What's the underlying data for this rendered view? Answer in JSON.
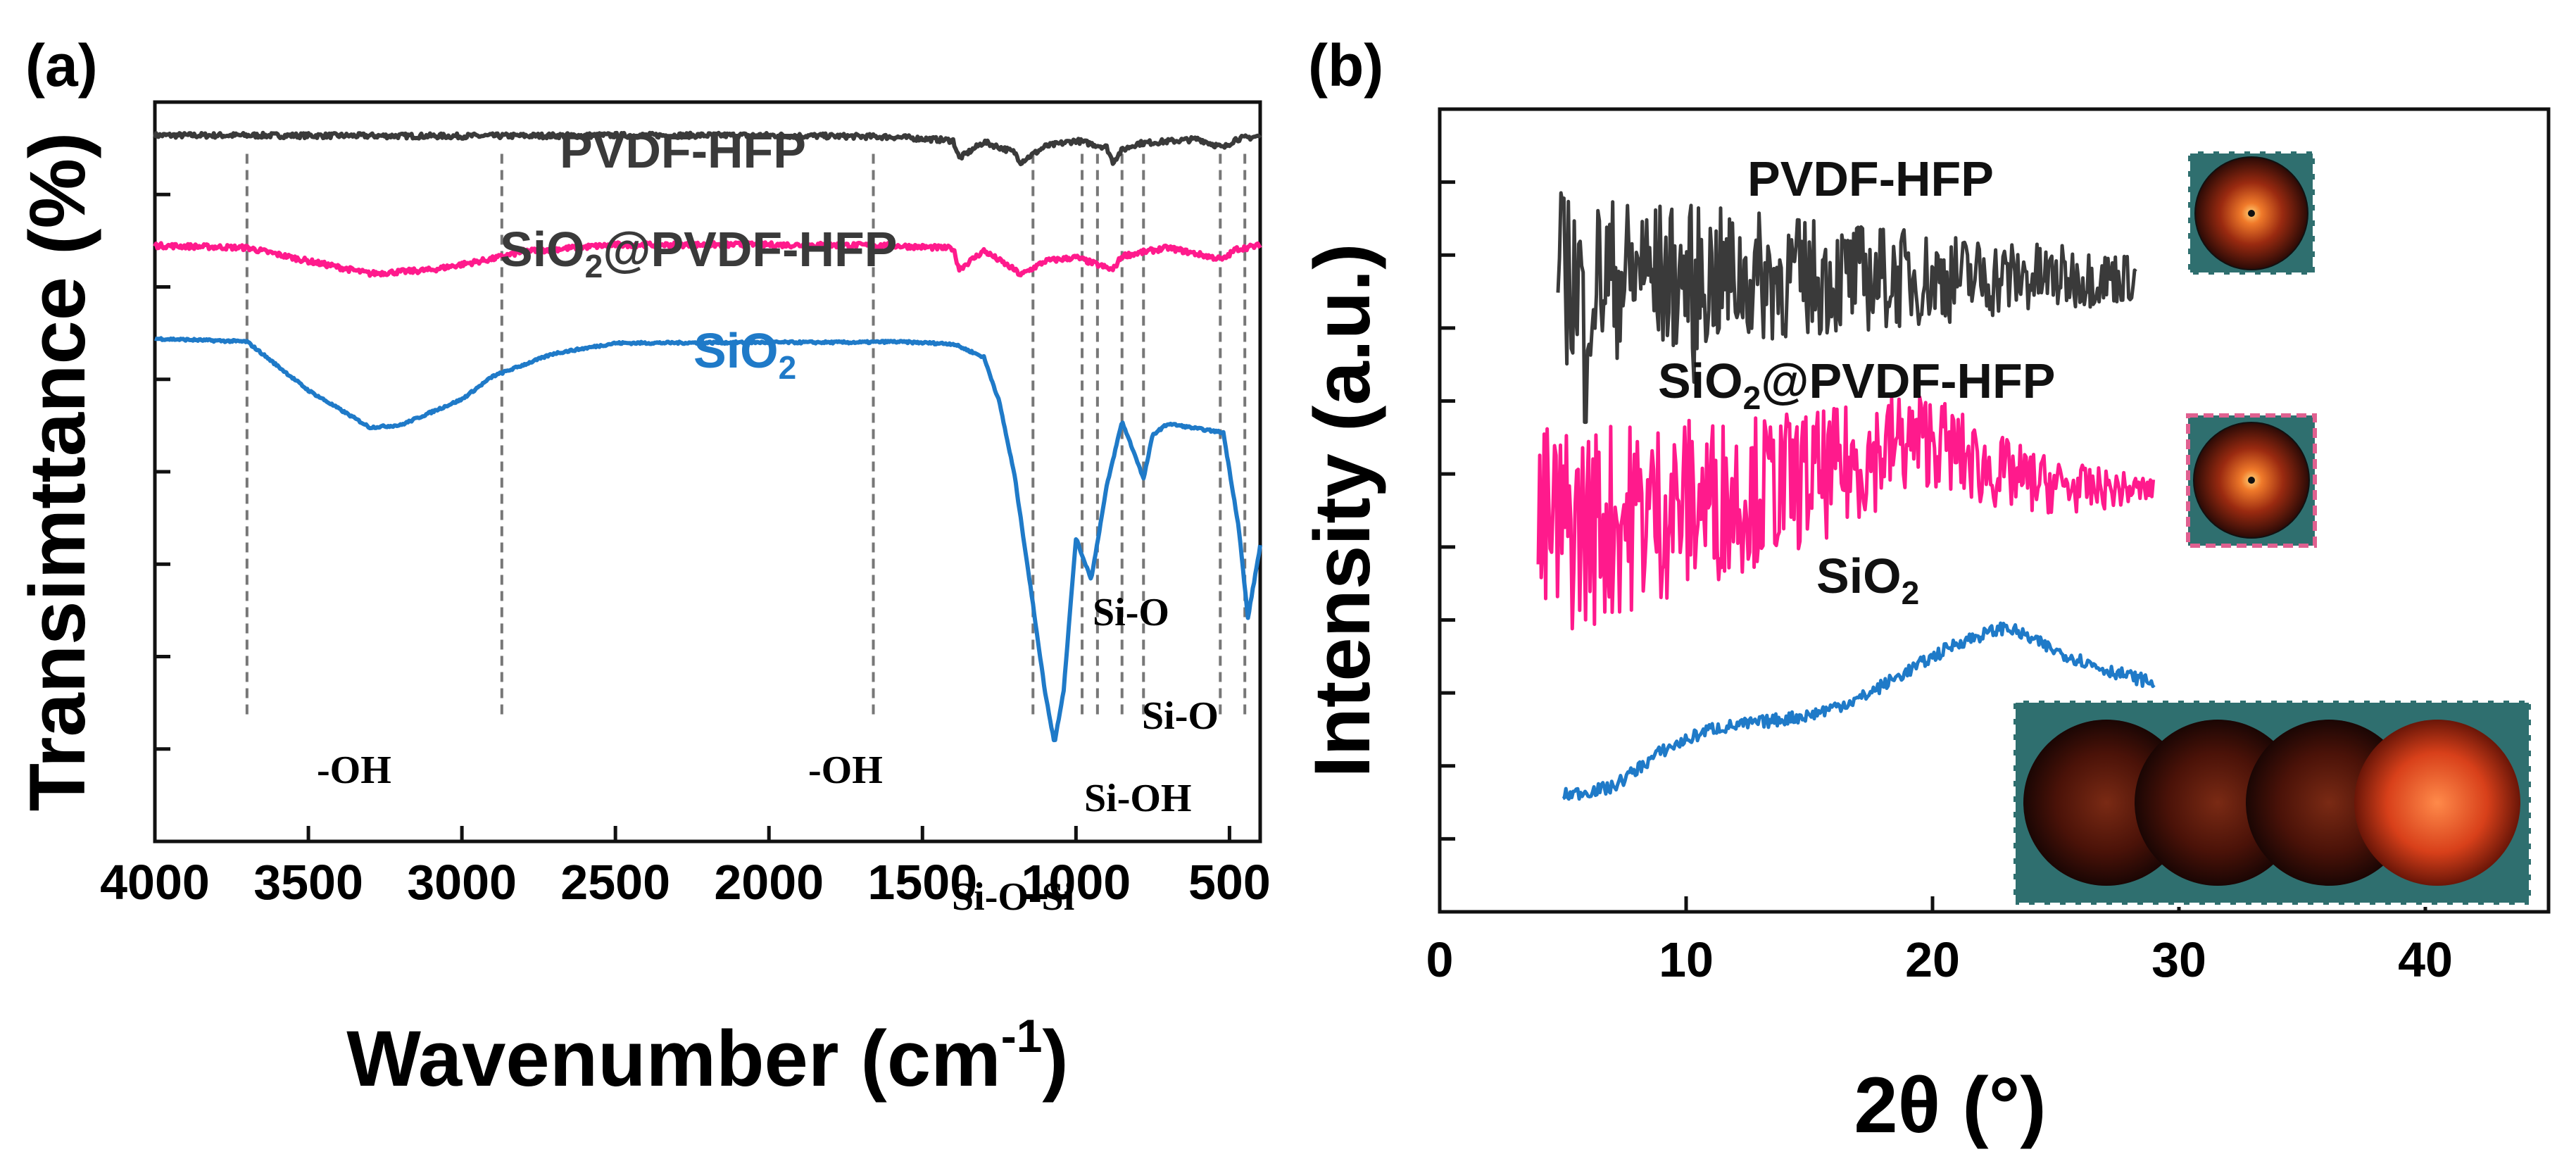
{
  "chart_data": [
    {
      "type": "line",
      "panel_label": "(a)",
      "title": "",
      "xlabel": "Wavenumber (cm",
      "xlabel_sup": "-1",
      "xlabel_end": ")",
      "ylabel": "Transimttance (%)",
      "xlim": [
        4000,
        400
      ],
      "ylim": [
        0,
        100
      ],
      "x_ticks": [
        4000,
        3500,
        3000,
        2500,
        2000,
        1500,
        1000,
        500
      ],
      "y_ticks_show_labels": false,
      "grid": false,
      "colors": {
        "PVDF-HFP": "#3a3a3a",
        "SiO2@PVDF-HFP": "#ff1a8c",
        "SiO2": "#1f7ac8",
        "guide": "#777777"
      },
      "series_labels": {
        "pvdf": "PVDF-HFP",
        "sio2pvdf_a": "SiO",
        "sio2pvdf_sub": "2",
        "sio2pvdf_b": "@PVDF-HFP",
        "sio2_a": "SiO",
        "sio2_sub": "2"
      },
      "series": [
        {
          "name": "PVDF-HFP",
          "x": [
            4000,
            3700,
            3000,
            2500,
            2000,
            1600,
            1400,
            1380,
            1300,
            1200,
            1180,
            1100,
            1000,
            900,
            880,
            850,
            800,
            600,
            520,
            480,
            400
          ],
          "values": [
            95.5,
            95.5,
            95.4,
            95.5,
            95.5,
            95.3,
            94.8,
            92.4,
            94.6,
            93.2,
            91.9,
            94.0,
            94.8,
            93.9,
            91.9,
            93.5,
            94.4,
            95.0,
            93.8,
            95.0,
            95.4
          ]
        },
        {
          "name": "SiO2@PVDF-HFP",
          "x": [
            4000,
            3700,
            3500,
            3300,
            3100,
            2900,
            2800,
            2500,
            2000,
            1600,
            1400,
            1380,
            1300,
            1200,
            1180,
            1100,
            1000,
            880,
            850,
            700,
            520,
            480,
            400
          ],
          "values": [
            80.6,
            80.3,
            78.5,
            76.8,
            77.3,
            78.8,
            79.8,
            80.7,
            80.7,
            80.6,
            80.2,
            77.4,
            79.9,
            77.3,
            76.6,
            78.5,
            79.0,
            77.3,
            79.2,
            80.3,
            78.7,
            80.1,
            80.6
          ]
        },
        {
          "name": "SiO2",
          "x": [
            4000,
            3700,
            3500,
            3300,
            3200,
            3000,
            2900,
            2700,
            2500,
            2000,
            1700,
            1600,
            1400,
            1300,
            1250,
            1200,
            1150,
            1100,
            1070,
            1040,
            1000,
            980,
            950,
            900,
            850,
            800,
            780,
            750,
            700,
            600,
            520,
            470,
            440,
            400
          ],
          "values": [
            68.0,
            67.6,
            61.0,
            56.0,
            56.3,
            59.8,
            62.9,
            66.0,
            67.4,
            67.5,
            67.5,
            67.6,
            67.3,
            65.5,
            59.5,
            49.5,
            35.0,
            20.0,
            13.3,
            20.5,
            41.0,
            38.7,
            35.5,
            48.0,
            56.8,
            51.4,
            49.0,
            55.0,
            56.5,
            55.8,
            55.3,
            42.5,
            30.2,
            40.0
          ]
        }
      ],
      "guide_lines_x": [
        3700,
        2870,
        1660,
        1140,
        980,
        930,
        850,
        780,
        530,
        450
      ],
      "annotations": [
        {
          "text": "-OH",
          "at": 3300
        },
        {
          "text": "-OH",
          "at": 1660
        },
        {
          "text": "Si-O-Si",
          "at": 1080
        },
        {
          "text": "Si-OH",
          "at": 940
        },
        {
          "text": "Si-O",
          "at": 790
        },
        {
          "text": "Si-O",
          "at": 460
        }
      ]
    },
    {
      "type": "line",
      "panel_label": "(b)",
      "title": "",
      "xlabel": "2θ (°)",
      "ylabel": "Intensity (a.u.)",
      "xlim": [
        0,
        45
      ],
      "ylim": [
        0,
        100
      ],
      "x_ticks": [
        0,
        10,
        20,
        30,
        40
      ],
      "y_ticks_show_labels": false,
      "grid": false,
      "colors": {
        "PVDF-HFP": "#3a3a3a",
        "SiO2@PVDF-HFP": "#ff1a8c",
        "SiO2": "#1f7ac8",
        "inset_bg": "#2f6f6f"
      },
      "series_labels": {
        "pvdf": "PVDF-HFP",
        "sio2pvdf_a": "SiO",
        "sio2pvdf_sub": "2",
        "sio2pvdf_b": "@PVDF-HFP",
        "sio2_a": "SiO",
        "sio2_sub": "2"
      },
      "series": [
        {
          "name": "PVDF-HFP",
          "x_range": [
            4.8,
            28.3
          ],
          "baseline": 79.0,
          "noise_start": 11,
          "noise_end": 3,
          "spikes": [
            {
              "x": 5.9,
              "y": 61
            },
            {
              "x": 10.3,
              "y": 66
            },
            {
              "x": 8.2,
              "y": 86
            }
          ]
        },
        {
          "name": "SiO2@PVDF-HFP",
          "x": [
            4,
            8,
            12,
            16,
            18.5,
            20,
            22,
            24,
            26,
            29
          ],
          "values": [
            47.0,
            49.5,
            52.0,
            54.7,
            58.2,
            59.0,
            55.4,
            53.6,
            52.7,
            52.6
          ],
          "noise_start": 14,
          "noise_end": 1.5
        },
        {
          "name": "SiO2",
          "x": [
            5,
            7,
            9,
            11,
            13,
            15,
            17,
            19,
            21,
            23,
            25,
            27,
            29
          ],
          "values": [
            14.5,
            15.5,
            20.0,
            22.8,
            23.6,
            24.5,
            26.5,
            30.0,
            33.5,
            35.5,
            32.5,
            30.2,
            28.5
          ],
          "noise_start": 0.8,
          "noise_end": 0.8
        }
      ],
      "insets": [
        "PVDF-HFP pattern",
        "SiO2@PVDF-HFP pattern",
        "SiO2 pattern"
      ]
    }
  ]
}
